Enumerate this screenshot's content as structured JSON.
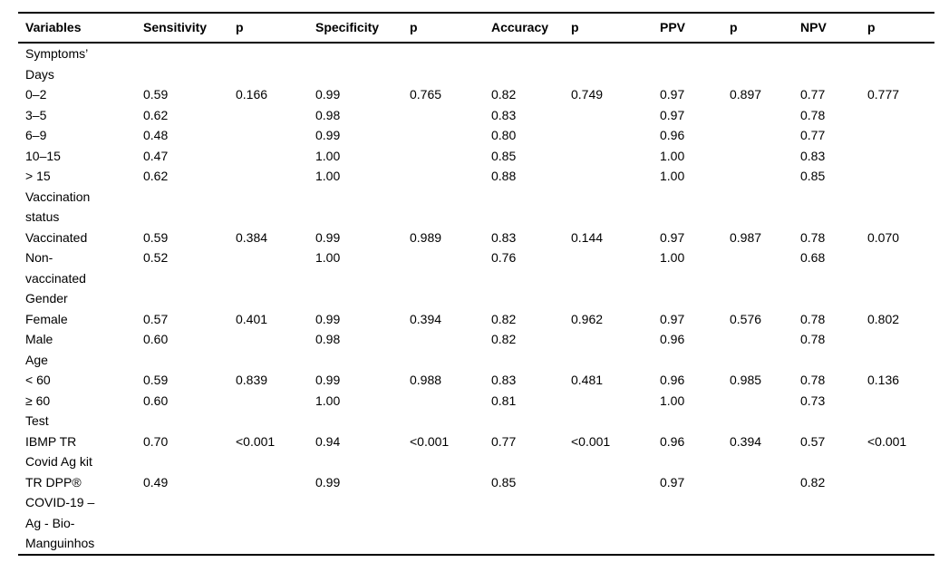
{
  "page": {
    "background": "#ffffff",
    "text_color": "#000000",
    "rule_color": "#000000"
  },
  "table": {
    "columns": [
      "Variables",
      "Sensitivity",
      "p",
      "Specificity",
      "p",
      "Accuracy",
      "p",
      "PPV",
      "p",
      "NPV",
      "p"
    ],
    "rows": [
      {
        "label": "Symptoms’\nDays",
        "group": true
      },
      {
        "label": "0–2",
        "values": [
          "0.59",
          "0.166",
          "0.99",
          "0.765",
          "0.82",
          "0.749",
          "0.97",
          "0.897",
          "0.77",
          "0.777"
        ]
      },
      {
        "label": "3–5",
        "values": [
          "0.62",
          "",
          "0.98",
          "",
          "0.83",
          "",
          "0.97",
          "",
          "0.78",
          ""
        ]
      },
      {
        "label": "6–9",
        "values": [
          "0.48",
          "",
          "0.99",
          "",
          "0.80",
          "",
          "0.96",
          "",
          "0.77",
          ""
        ]
      },
      {
        "label": "10–15",
        "values": [
          "0.47",
          "",
          "1.00",
          "",
          "0.85",
          "",
          "1.00",
          "",
          "0.83",
          ""
        ]
      },
      {
        "label": "> 15",
        "values": [
          "0.62",
          "",
          "1.00",
          "",
          "0.88",
          "",
          "1.00",
          "",
          "0.85",
          ""
        ]
      },
      {
        "label": "Vaccination\nstatus",
        "group": true
      },
      {
        "label": "Vaccinated",
        "values": [
          "0.59",
          "0.384",
          "0.99",
          "0.989",
          "0.83",
          "0.144",
          "0.97",
          "0.987",
          "0.78",
          "0.070"
        ]
      },
      {
        "label": "Non-\nvaccinated",
        "values": [
          "0.52",
          "",
          "1.00",
          "",
          "0.76",
          "",
          "1.00",
          "",
          "0.68",
          ""
        ]
      },
      {
        "label": "Gender",
        "group": true
      },
      {
        "label": "Female",
        "values": [
          "0.57",
          "0.401",
          "0.99",
          "0.394",
          "0.82",
          "0.962",
          "0.97",
          "0.576",
          "0.78",
          "0.802"
        ]
      },
      {
        "label": "Male",
        "values": [
          "0.60",
          "",
          "0.98",
          "",
          "0.82",
          "",
          "0.96",
          "",
          "0.78",
          ""
        ]
      },
      {
        "label": "Age",
        "group": true
      },
      {
        "label": "< 60",
        "values": [
          "0.59",
          "0.839",
          "0.99",
          "0.988",
          "0.83",
          "0.481",
          "0.96",
          "0.985",
          "0.78",
          "0.136"
        ]
      },
      {
        "label": "≥ 60",
        "values": [
          "0.60",
          "",
          "1.00",
          "",
          "0.81",
          "",
          "1.00",
          "",
          "0.73",
          ""
        ]
      },
      {
        "label": "Test",
        "group": true
      },
      {
        "label": "IBMP TR\nCovid Ag kit",
        "values": [
          "0.70",
          "<0.001",
          "0.94",
          "<0.001",
          "0.77",
          "<0.001",
          "0.96",
          "0.394",
          "0.57",
          "<0.001"
        ]
      },
      {
        "label": "TR DPP®\nCOVID-19 –\nAg - Bio-\nManguinhos",
        "values": [
          "0.49",
          "",
          "0.99",
          "",
          "0.85",
          "",
          "0.97",
          "",
          "0.82",
          ""
        ]
      }
    ]
  }
}
